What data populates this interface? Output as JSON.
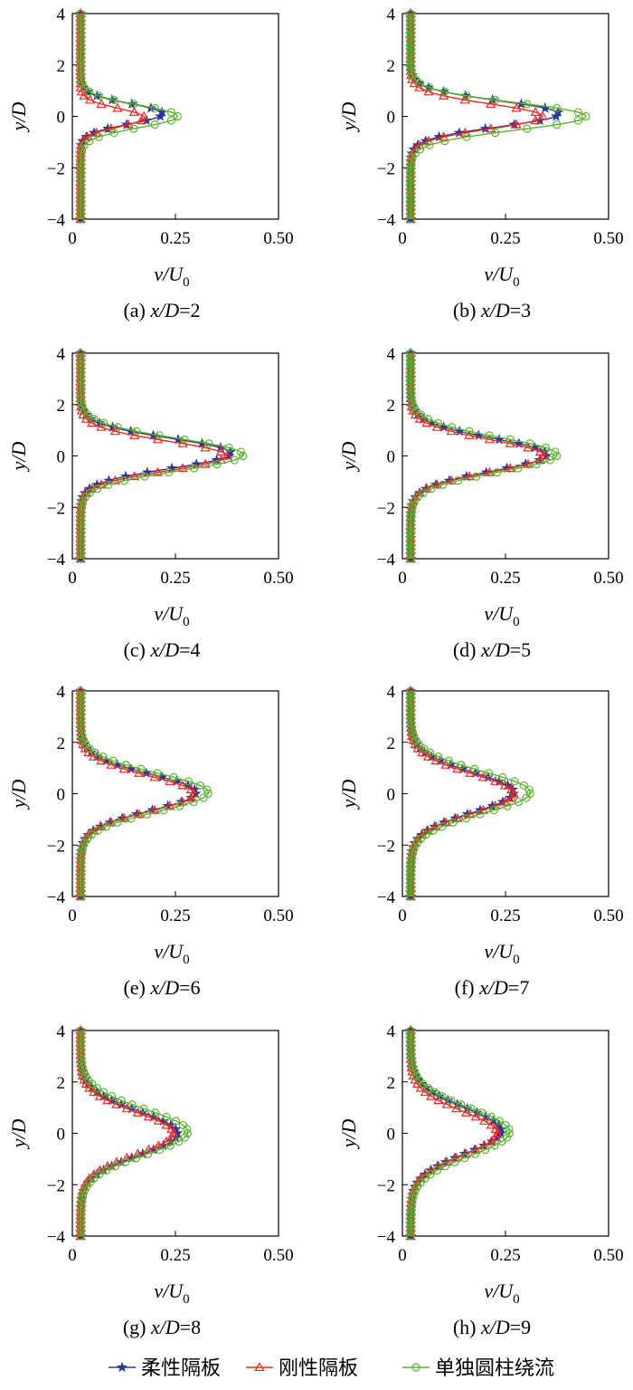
{
  "legend": {
    "placement": "bottom",
    "entries": [
      {
        "label": "柔性隔板",
        "color": "#2b3990",
        "marker": "star"
      },
      {
        "label": "刚性隔板",
        "color": "#ee2a24",
        "marker": "triangle"
      },
      {
        "label": "单独圆柱绕流",
        "color": "#5bb431",
        "marker": "circle"
      }
    ]
  },
  "chart_data": [
    {
      "type": "line",
      "caption_prefix": "(a) ",
      "caption_italic": "x/D",
      "caption_suffix": "=2",
      "xlabel_main": "v/U",
      "xlabel_sub": "0",
      "ylabel": "y/D",
      "xlim": [
        0,
        0.5
      ],
      "ylim": [
        -4,
        4
      ],
      "xticks": [
        "0",
        "0.25",
        "0.50"
      ],
      "yticks": [
        "-4",
        "-2",
        "0",
        "2",
        "4"
      ],
      "grid": false,
      "series": [
        {
          "name": "柔性隔板",
          "base": 0.02,
          "peak": 0.22,
          "center": 0.1,
          "width": 0.55
        },
        {
          "name": "刚性隔板",
          "base": 0.02,
          "peak": 0.175,
          "center": -0.05,
          "width": 0.5
        },
        {
          "name": "单独圆柱绕流",
          "base": 0.02,
          "peak": 0.255,
          "center": 0.0,
          "width": 0.62
        }
      ]
    },
    {
      "type": "line",
      "caption_prefix": "(b) ",
      "caption_italic": "x/D",
      "caption_suffix": "=3",
      "xlabel_main": "v/U",
      "xlabel_sub": "0",
      "ylabel": "y/D",
      "xlim": [
        0,
        0.5
      ],
      "ylim": [
        -4,
        4
      ],
      "xticks": [
        "0",
        "0.25",
        "0.50"
      ],
      "yticks": [
        "-4",
        "-2",
        "0",
        "2",
        "4"
      ],
      "grid": false,
      "series": [
        {
          "name": "柔性隔板",
          "base": 0.02,
          "peak": 0.38,
          "center": 0.1,
          "width": 0.7
        },
        {
          "name": "刚性隔板",
          "base": 0.02,
          "peak": 0.34,
          "center": 0.0,
          "width": 0.68
        },
        {
          "name": "单独圆柱绕流",
          "base": 0.02,
          "peak": 0.445,
          "center": 0.0,
          "width": 0.75
        }
      ]
    },
    {
      "type": "line",
      "caption_prefix": "(c) ",
      "caption_italic": "x/D",
      "caption_suffix": "=4",
      "xlabel_main": "v/U",
      "xlabel_sub": "0",
      "ylabel": "y/D",
      "xlim": [
        0,
        0.5
      ],
      "ylim": [
        -4,
        4
      ],
      "xticks": [
        "0",
        "0.25",
        "0.50"
      ],
      "yticks": [
        "-4",
        "-2",
        "0",
        "2",
        "4"
      ],
      "grid": false,
      "series": [
        {
          "name": "柔性隔板",
          "base": 0.02,
          "peak": 0.385,
          "center": 0.1,
          "width": 0.82
        },
        {
          "name": "刚性隔板",
          "base": 0.02,
          "peak": 0.375,
          "center": 0.0,
          "width": 0.8
        },
        {
          "name": "单独圆柱绕流",
          "base": 0.02,
          "peak": 0.415,
          "center": 0.05,
          "width": 0.88
        }
      ]
    },
    {
      "type": "line",
      "caption_prefix": "(d) ",
      "caption_italic": "x/D",
      "caption_suffix": "=5",
      "xlabel_main": "v/U",
      "xlabel_sub": "0",
      "ylabel": "y/D",
      "xlim": [
        0,
        0.5
      ],
      "ylim": [
        -4,
        4
      ],
      "xticks": [
        "0",
        "0.25",
        "0.50"
      ],
      "yticks": [
        "-4",
        "-2",
        "0",
        "2",
        "4"
      ],
      "grid": false,
      "series": [
        {
          "name": "柔性隔板",
          "base": 0.02,
          "peak": 0.35,
          "center": 0.05,
          "width": 0.9
        },
        {
          "name": "刚性隔板",
          "base": 0.02,
          "peak": 0.345,
          "center": 0.0,
          "width": 0.88
        },
        {
          "name": "单独圆柱绕流",
          "base": 0.02,
          "peak": 0.375,
          "center": 0.05,
          "width": 0.95
        }
      ]
    },
    {
      "type": "line",
      "caption_prefix": "(e) ",
      "caption_italic": "x/D",
      "caption_suffix": "=6",
      "xlabel_main": "v/U",
      "xlabel_sub": "0",
      "ylabel": "y/D",
      "xlim": [
        0,
        0.5
      ],
      "ylim": [
        -4,
        4
      ],
      "xticks": [
        "0",
        "0.25",
        "0.50"
      ],
      "yticks": [
        "-4",
        "-2",
        "0",
        "2",
        "4"
      ],
      "grid": false,
      "series": [
        {
          "name": "柔性隔板",
          "base": 0.02,
          "peak": 0.3,
          "center": 0.05,
          "width": 1.0
        },
        {
          "name": "刚性隔板",
          "base": 0.02,
          "peak": 0.295,
          "center": 0.0,
          "width": 0.98
        },
        {
          "name": "单独圆柱绕流",
          "base": 0.02,
          "peak": 0.33,
          "center": 0.05,
          "width": 1.05
        }
      ]
    },
    {
      "type": "line",
      "caption_prefix": "(f) ",
      "caption_italic": "x/D",
      "caption_suffix": "=7",
      "xlabel_main": "v/U",
      "xlabel_sub": "0",
      "ylabel": "y/D",
      "xlim": [
        0,
        0.5
      ],
      "ylim": [
        -4,
        4
      ],
      "xticks": [
        "0",
        "0.25",
        "0.50"
      ],
      "yticks": [
        "-4",
        "-2",
        "0",
        "2",
        "4"
      ],
      "grid": false,
      "series": [
        {
          "name": "柔性隔板",
          "base": 0.02,
          "peak": 0.27,
          "center": 0.05,
          "width": 1.1
        },
        {
          "name": "刚性隔板",
          "base": 0.02,
          "peak": 0.27,
          "center": 0.0,
          "width": 1.08
        },
        {
          "name": "单独圆柱绕流",
          "base": 0.02,
          "peak": 0.31,
          "center": 0.05,
          "width": 1.15
        }
      ]
    },
    {
      "type": "line",
      "caption_prefix": "(g) ",
      "caption_italic": "x/D",
      "caption_suffix": "=8",
      "xlabel_main": "v/U",
      "xlabel_sub": "0",
      "ylabel": "y/D",
      "xlim": [
        0,
        0.5
      ],
      "ylim": [
        -4,
        4
      ],
      "xticks": [
        "0",
        "0.25",
        "0.50"
      ],
      "yticks": [
        "-4",
        "-2",
        "0",
        "2",
        "4"
      ],
      "grid": false,
      "series": [
        {
          "name": "柔性隔板",
          "base": 0.02,
          "peak": 0.255,
          "center": 0.0,
          "width": 1.2
        },
        {
          "name": "刚性隔板",
          "base": 0.02,
          "peak": 0.245,
          "center": 0.0,
          "width": 1.15
        },
        {
          "name": "单独圆柱绕流",
          "base": 0.02,
          "peak": 0.28,
          "center": 0.05,
          "width": 1.25
        }
      ]
    },
    {
      "type": "line",
      "caption_prefix": "(h) ",
      "caption_italic": "x/D",
      "caption_suffix": "=9",
      "xlabel_main": "v/U",
      "xlabel_sub": "0",
      "ylabel": "y/D",
      "xlim": [
        0,
        0.5
      ],
      "ylim": [
        -4,
        4
      ],
      "xticks": [
        "0",
        "0.25",
        "0.50"
      ],
      "yticks": [
        "-4",
        "-2",
        "0",
        "2",
        "4"
      ],
      "grid": false,
      "series": [
        {
          "name": "柔性隔板",
          "base": 0.02,
          "peak": 0.24,
          "center": 0.1,
          "width": 1.25
        },
        {
          "name": "刚性隔板",
          "base": 0.02,
          "peak": 0.23,
          "center": 0.0,
          "width": 1.2
        },
        {
          "name": "单独圆柱绕流",
          "base": 0.02,
          "peak": 0.26,
          "center": 0.05,
          "width": 1.3
        }
      ]
    }
  ]
}
